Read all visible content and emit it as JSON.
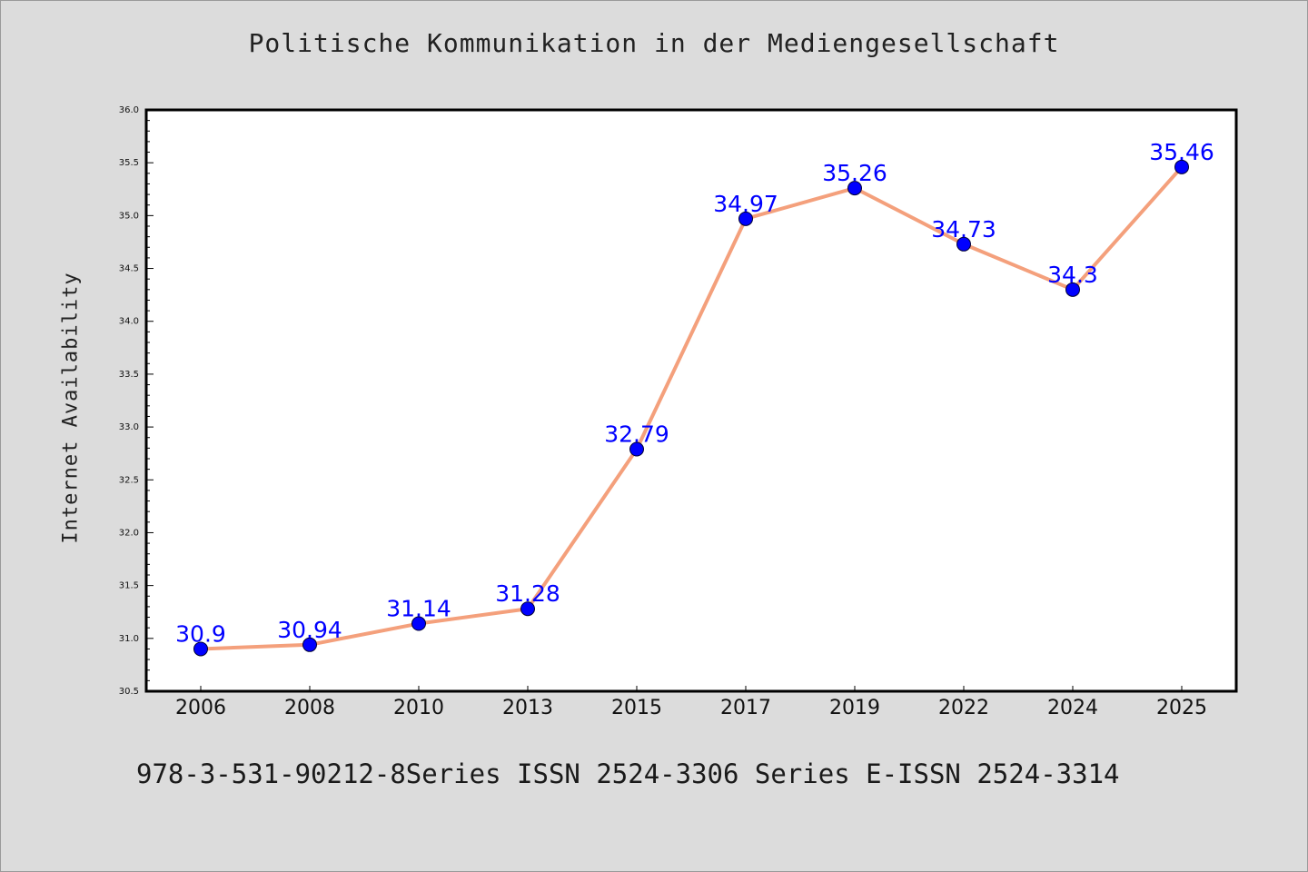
{
  "chart_data": {
    "type": "line",
    "title": "Politische Kommunikation in der Mediengesellschaft",
    "xlabel": "",
    "ylabel": "Internet Availability",
    "categories": [
      "2006",
      "2008",
      "2010",
      "2013",
      "2015",
      "2017",
      "2019",
      "2022",
      "2024",
      "2025"
    ],
    "series": [
      {
        "values": [
          30.9,
          30.94,
          31.14,
          31.28,
          32.79,
          34.97,
          35.26,
          34.73,
          34.3,
          35.46
        ],
        "labels": [
          "30.9",
          "30.94",
          "31.14",
          "31.28",
          "32.79",
          "34.97",
          "35.26",
          "34.73",
          "34.3",
          "35.46"
        ],
        "line_color": "#f4a07c",
        "marker_color": "#0000ff"
      }
    ],
    "ylim": [
      30.5,
      36.0
    ],
    "yticks": [
      "30.5",
      "31.0",
      "31.5",
      "32.0",
      "32.5",
      "33.0",
      "33.5",
      "34.0",
      "34.5",
      "35.0",
      "35.5",
      "36.0"
    ],
    "grid": false,
    "label_color": "#0000ff"
  },
  "footer": "978-3-531-90212-8Series ISSN 2524-3306 Series E-ISSN 2524-3314"
}
